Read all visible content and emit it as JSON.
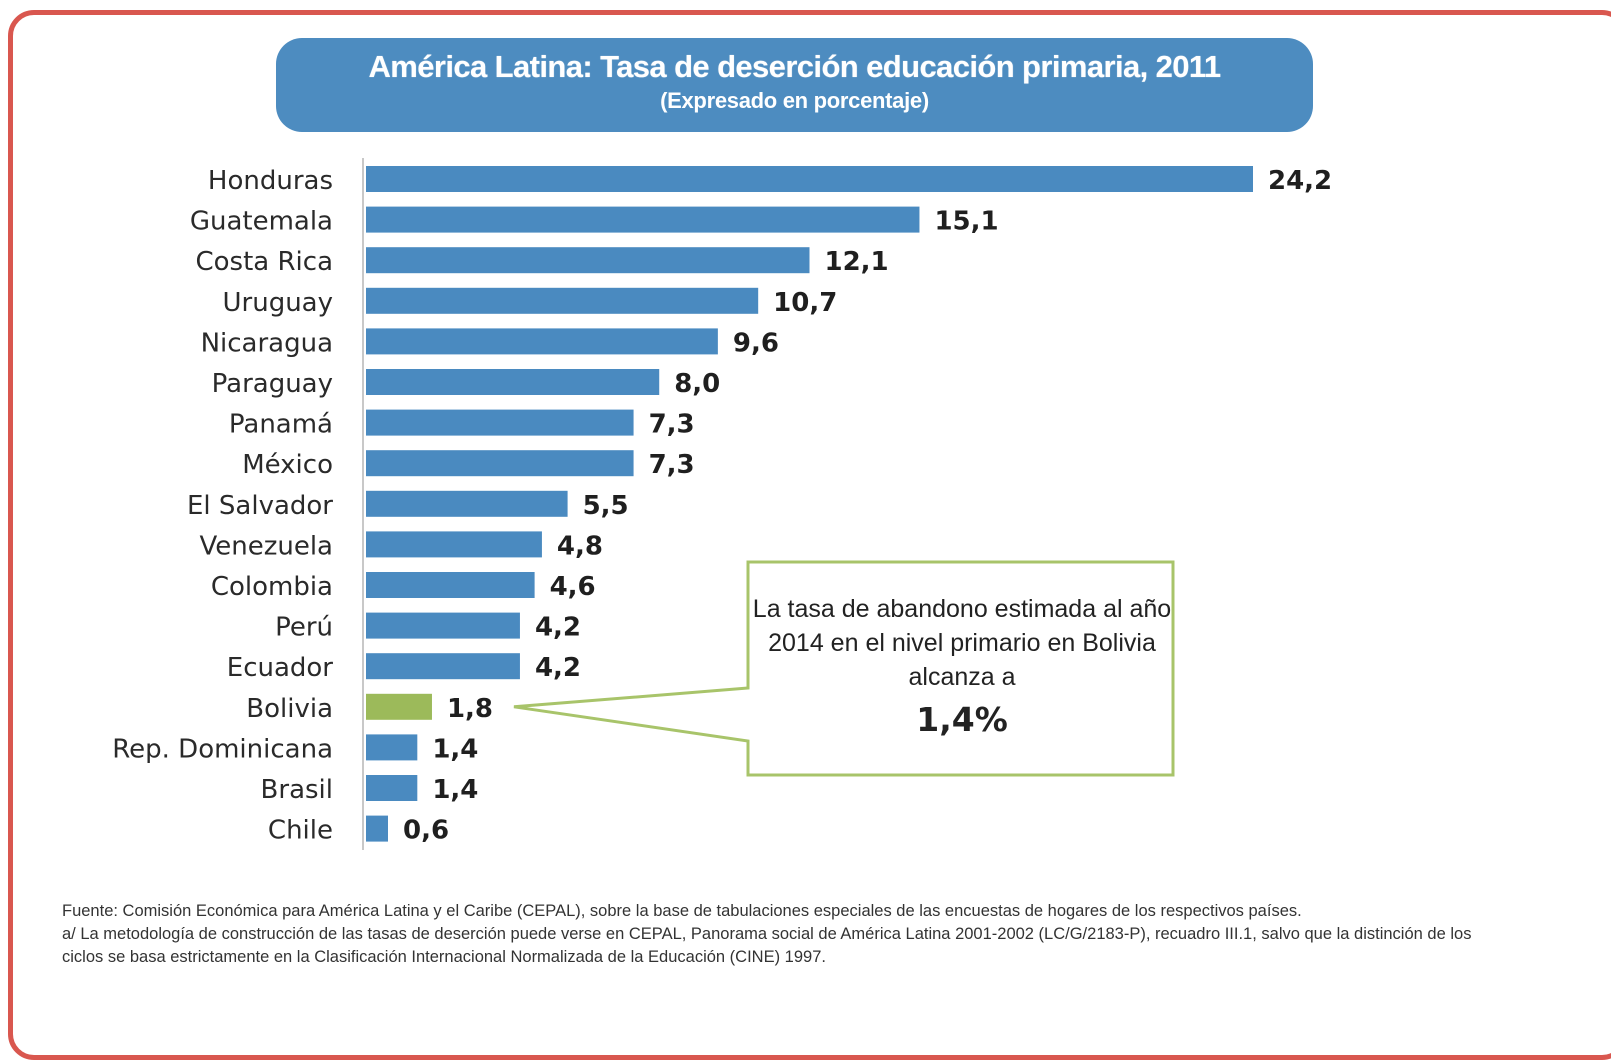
{
  "header": {
    "title": "América Latina: Tasa de deserción educación primaria, 2011",
    "subtitle": "(Expresado en porcentaje)"
  },
  "colors": {
    "border": "#d9574f",
    "banner": "#4d8cc0",
    "bar": "#4a8ac0",
    "highlight_bar": "#9cba5a",
    "callout_border": "#a8c46a"
  },
  "chart_data": {
    "type": "bar",
    "orientation": "horizontal",
    "title": "América Latina: Tasa de deserción educación primaria, 2011",
    "subtitle": "(Expresado en porcentaje)",
    "categories": [
      "Honduras",
      "Guatemala",
      "Costa Rica",
      "Uruguay",
      "Nicaragua",
      "Paraguay",
      "Panamá",
      "México",
      "El Salvador",
      "Venezuela",
      "Colombia",
      "Perú",
      "Ecuador",
      "Bolivia",
      "Rep. Dominicana",
      "Brasil",
      "Chile"
    ],
    "values": [
      24.2,
      15.1,
      12.1,
      10.7,
      9.6,
      8.0,
      7.3,
      7.3,
      5.5,
      4.8,
      4.6,
      4.2,
      4.2,
      1.8,
      1.4,
      1.4,
      0.6
    ],
    "value_labels": [
      "24,2",
      "15,1",
      "12,1",
      "10,7",
      "9,6",
      "8,0",
      "7,3",
      "7,3",
      "5,5",
      "4,8",
      "4,6",
      "4,2",
      "4,2",
      "1,8",
      "1,4",
      "1,4",
      "0,6"
    ],
    "highlight": "Bolivia",
    "xlim": [
      0,
      24.2
    ],
    "grid": false,
    "legend": "none"
  },
  "callout": {
    "text": "La tasa de abandono estimada al año 2014 en el nivel primario en Bolivia  alcanza a",
    "value": "1,4%"
  },
  "footnote": {
    "source": "Fuente: Comisión Económica para América Latina y el Caribe (CEPAL), sobre la base de tabulaciones especiales de las encuestas de hogares de los respectivos países.",
    "note": "a/ La metodología de construcción de las tasas de deserción puede verse en CEPAL, Panorama social de América Latina 2001-2002 (LC/G/2183-P), recuadro III.1, salvo que la distinción de los ciclos se basa estrictamente en la Clasificación Internacional Normalizada de la Educación (CINE) 1997."
  }
}
